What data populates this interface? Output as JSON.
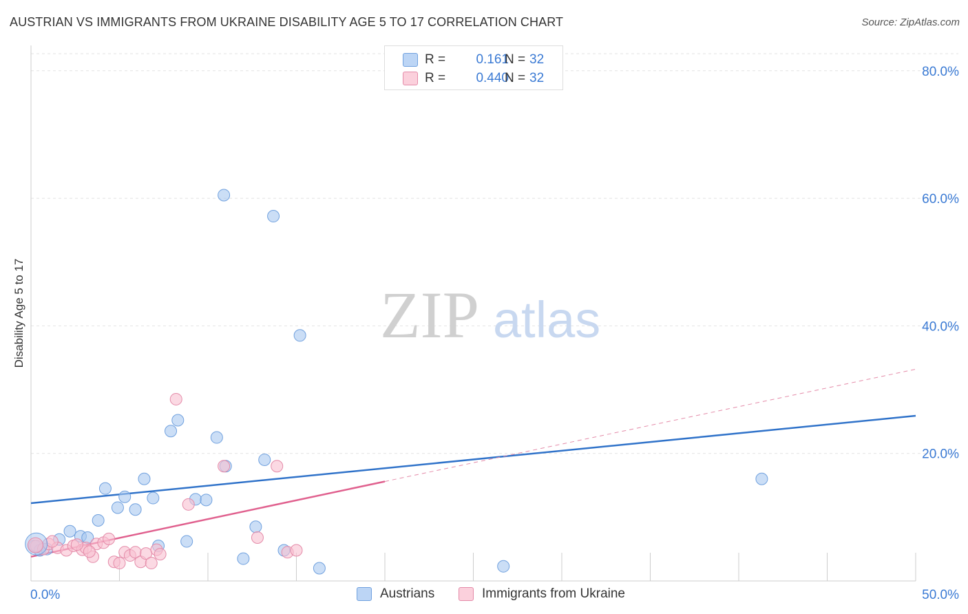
{
  "title": "AUSTRIAN VS IMMIGRANTS FROM UKRAINE DISABILITY AGE 5 TO 17 CORRELATION CHART",
  "source": "Source: ZipAtlas.com",
  "watermark": {
    "zip": "ZIP",
    "atlas": "atlas"
  },
  "legend": {
    "rows": [
      {
        "r_label": "R =",
        "r_value": "0.161",
        "n_label": "N =",
        "n_value": "32"
      },
      {
        "r_label": "R =",
        "r_value": "0.440",
        "n_label": "N =",
        "n_value": "32"
      }
    ]
  },
  "chart_data": {
    "type": "scatter",
    "title": "AUSTRIAN VS IMMIGRANTS FROM UKRAINE DISABILITY AGE 5 TO 17 CORRELATION CHART",
    "xlabel": "",
    "ylabel": "Disability Age 5 to 17",
    "xlim": [
      0,
      50
    ],
    "ylim": [
      0,
      83
    ],
    "x_tick_labels": [
      "0.0%",
      "50.0%"
    ],
    "y_ticks": [
      20,
      40,
      60,
      80
    ],
    "y_tick_labels": [
      "20.0%",
      "40.0%",
      "60.0%",
      "80.0%"
    ],
    "series": [
      {
        "name": "Austrians",
        "color": "#a9c8f0",
        "stroke": "#6fa0de",
        "r": "0.161",
        "n": "32",
        "points": [
          [
            0.2,
            5.5
          ],
          [
            0.5,
            4.8
          ],
          [
            0.9,
            5.0
          ],
          [
            1.6,
            6.5
          ],
          [
            2.2,
            7.8
          ],
          [
            2.8,
            7.0
          ],
          [
            3.2,
            6.8
          ],
          [
            3.8,
            9.5
          ],
          [
            4.2,
            14.5
          ],
          [
            4.9,
            11.5
          ],
          [
            5.3,
            13.2
          ],
          [
            5.9,
            11.2
          ],
          [
            6.4,
            16.0
          ],
          [
            6.9,
            13.0
          ],
          [
            7.2,
            5.5
          ],
          [
            7.9,
            23.5
          ],
          [
            8.3,
            25.2
          ],
          [
            8.8,
            6.2
          ],
          [
            9.3,
            12.8
          ],
          [
            9.9,
            12.7
          ],
          [
            10.5,
            22.5
          ],
          [
            10.9,
            60.5
          ],
          [
            11.0,
            18.0
          ],
          [
            12.0,
            3.5
          ],
          [
            12.7,
            8.5
          ],
          [
            13.2,
            19.0
          ],
          [
            13.7,
            57.2
          ],
          [
            14.3,
            4.8
          ],
          [
            15.2,
            38.5
          ],
          [
            16.3,
            2.0
          ],
          [
            26.7,
            2.3
          ],
          [
            41.3,
            16.0
          ]
        ],
        "trend": {
          "x": [
            0,
            50
          ],
          "y": [
            12.2,
            25.9
          ]
        }
      },
      {
        "name": "Immigrants from Ukraine",
        "color": "#f8c0d0",
        "stroke": "#e48aa8",
        "r": "0.440",
        "n": "32",
        "points": [
          [
            0.3,
            5.5
          ],
          [
            0.7,
            5.0
          ],
          [
            1.0,
            5.8
          ],
          [
            1.5,
            5.2
          ],
          [
            2.0,
            4.8
          ],
          [
            2.4,
            5.5
          ],
          [
            2.9,
            4.9
          ],
          [
            3.1,
            5.2
          ],
          [
            3.5,
            3.8
          ],
          [
            3.7,
            5.8
          ],
          [
            4.1,
            6.0
          ],
          [
            4.4,
            6.6
          ],
          [
            4.7,
            3.0
          ],
          [
            5.0,
            2.8
          ],
          [
            5.3,
            4.5
          ],
          [
            5.6,
            4.0
          ],
          [
            5.9,
            4.5
          ],
          [
            6.2,
            3.0
          ],
          [
            6.5,
            4.3
          ],
          [
            6.8,
            2.8
          ],
          [
            7.1,
            4.9
          ],
          [
            7.3,
            4.2
          ],
          [
            8.2,
            28.5
          ],
          [
            8.9,
            12.0
          ],
          [
            10.9,
            18.0
          ],
          [
            12.8,
            6.8
          ],
          [
            13.9,
            18.0
          ],
          [
            14.5,
            4.5
          ],
          [
            15.0,
            4.8
          ],
          [
            1.2,
            6.2
          ],
          [
            2.6,
            5.7
          ],
          [
            3.3,
            4.6
          ]
        ],
        "trend": {
          "x": [
            0,
            20
          ],
          "y": [
            3.8,
            15.6
          ]
        },
        "trend_dashed": {
          "x": [
            20,
            50
          ],
          "y": [
            15.6,
            33.2
          ]
        }
      }
    ]
  }
}
